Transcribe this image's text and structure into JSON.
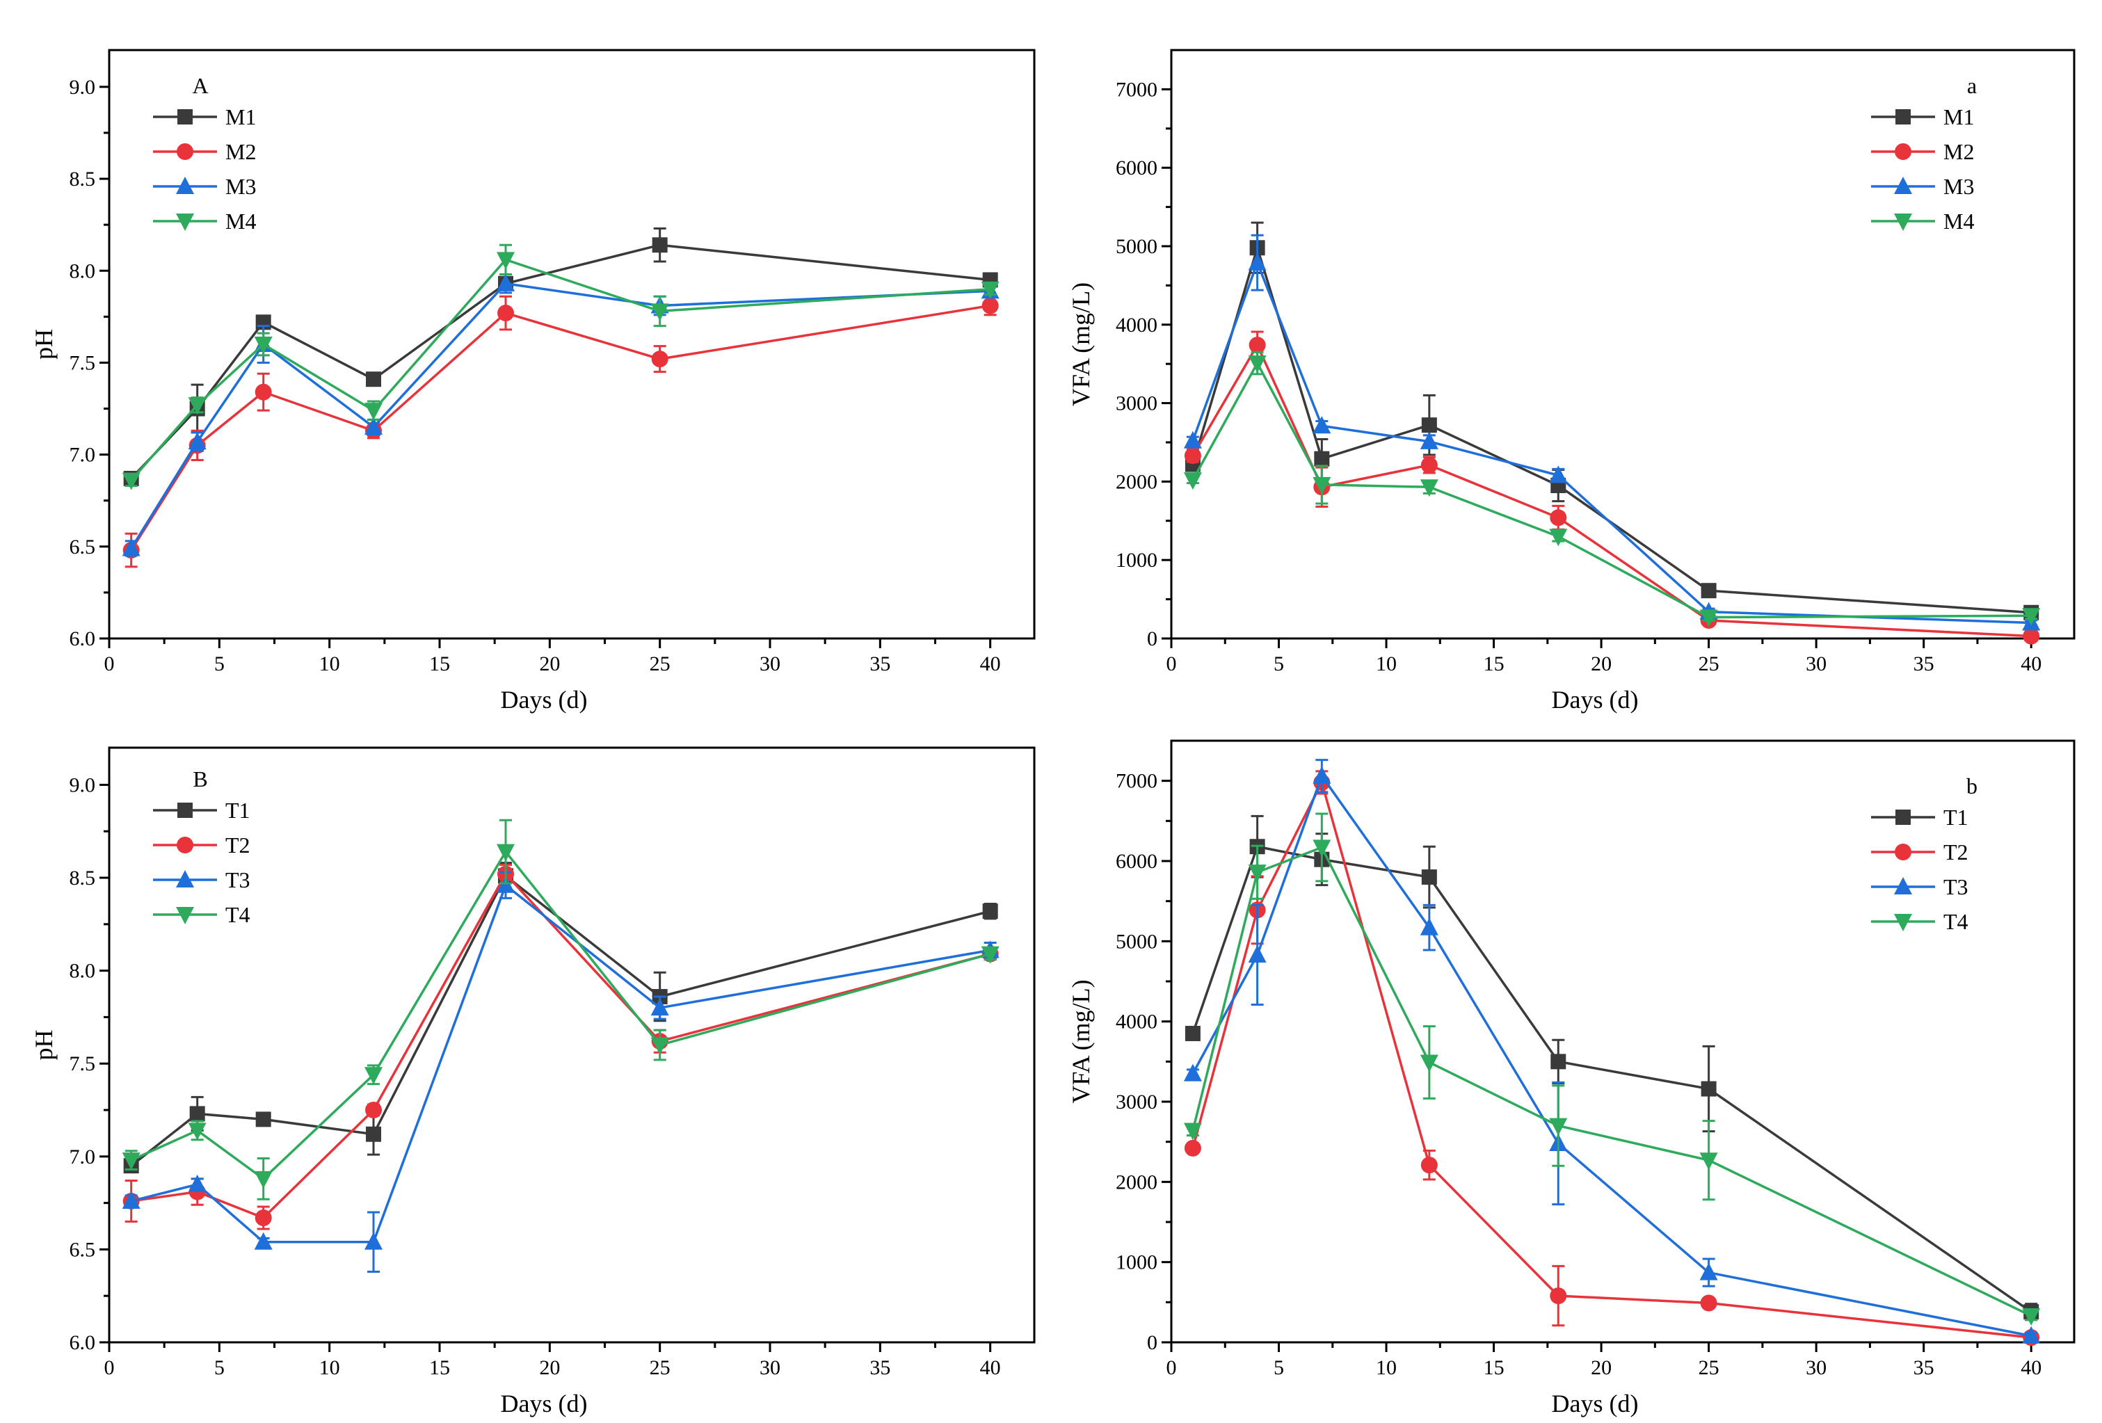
{
  "chart_data": [
    {
      "type": "line",
      "panel": "A",
      "title": "",
      "xlabel": "Days (d)",
      "ylabel": "pH",
      "xlim": [
        0,
        42
      ],
      "ylim": [
        6.0,
        9.2
      ],
      "xticks": [
        0,
        5,
        10,
        15,
        20,
        25,
        30,
        35,
        40
      ],
      "yticks": [
        6.0,
        6.5,
        7.0,
        7.5,
        8.0,
        8.5,
        9.0
      ],
      "tick_decimals": 1,
      "legend_position": "top-left",
      "x": [
        1,
        4,
        7,
        12,
        18,
        25,
        40
      ],
      "series": [
        {
          "name": "M1",
          "color": "#3a3a3a",
          "marker": "square",
          "values": [
            6.87,
            7.25,
            7.72,
            7.41,
            7.93,
            8.14,
            7.95
          ],
          "errors": [
            0.03,
            0.13,
            0.02,
            0.02,
            0.05,
            0.09,
            0.03
          ]
        },
        {
          "name": "M2",
          "color": "#e8333a",
          "marker": "circle",
          "values": [
            6.48,
            7.05,
            7.34,
            7.13,
            7.77,
            7.52,
            7.81
          ],
          "errors": [
            0.09,
            0.08,
            0.1,
            0.04,
            0.09,
            0.07,
            0.05
          ]
        },
        {
          "name": "M3",
          "color": "#1f6fdb",
          "marker": "triangle-up",
          "values": [
            6.49,
            7.07,
            7.6,
            7.15,
            7.93,
            7.81,
            7.89
          ],
          "errors": [
            0.04,
            0.05,
            0.1,
            0.04,
            0.05,
            0.05,
            0.03
          ]
        },
        {
          "name": "M4",
          "color": "#2eaa5c",
          "marker": "triangle-down",
          "values": [
            6.86,
            7.27,
            7.6,
            7.24,
            8.06,
            7.78,
            7.9
          ],
          "errors": [
            0.03,
            0.04,
            0.06,
            0.05,
            0.08,
            0.08,
            0.03
          ]
        }
      ]
    },
    {
      "type": "line",
      "panel": "a",
      "title": "",
      "xlabel": "Days (d)",
      "ylabel": "VFA (mg/L)",
      "xlim": [
        0,
        42
      ],
      "ylim": [
        0,
        7500
      ],
      "xticks": [
        0,
        5,
        10,
        15,
        20,
        25,
        30,
        35,
        40
      ],
      "yticks": [
        0,
        1000,
        2000,
        3000,
        4000,
        5000,
        6000,
        7000
      ],
      "tick_decimals": 0,
      "legend_position": "top-right",
      "x": [
        1,
        4,
        7,
        12,
        18,
        25,
        40
      ],
      "series": [
        {
          "name": "M1",
          "color": "#3a3a3a",
          "marker": "square",
          "values": [
            2220,
            4980,
            2290,
            2720,
            1950,
            610,
            330
          ],
          "errors": [
            60,
            320,
            250,
            380,
            200,
            50,
            40
          ]
        },
        {
          "name": "M2",
          "color": "#e8333a",
          "marker": "circle",
          "values": [
            2330,
            3740,
            1930,
            2210,
            1540,
            230,
            30
          ],
          "errors": [
            80,
            170,
            250,
            100,
            150,
            40,
            20
          ]
        },
        {
          "name": "M3",
          "color": "#1f6fdb",
          "marker": "triangle-up",
          "values": [
            2520,
            4790,
            2710,
            2510,
            2080,
            340,
            200
          ],
          "errors": [
            50,
            350,
            60,
            80,
            80,
            40,
            30
          ]
        },
        {
          "name": "M4",
          "color": "#2eaa5c",
          "marker": "triangle-down",
          "values": [
            2020,
            3510,
            1960,
            1930,
            1300,
            270,
            290
          ],
          "errors": [
            40,
            140,
            240,
            80,
            60,
            40,
            40
          ]
        }
      ]
    },
    {
      "type": "line",
      "panel": "B",
      "title": "",
      "xlabel": "Days (d)",
      "ylabel": "pH",
      "xlim": [
        0,
        42
      ],
      "ylim": [
        6.0,
        9.2
      ],
      "xticks": [
        0,
        5,
        10,
        15,
        20,
        25,
        30,
        35,
        40
      ],
      "yticks": [
        6.0,
        6.5,
        7.0,
        7.5,
        8.0,
        8.5,
        9.0
      ],
      "tick_decimals": 1,
      "legend_position": "top-left",
      "x": [
        1,
        4,
        7,
        12,
        18,
        25,
        40
      ],
      "series": [
        {
          "name": "T1",
          "color": "#3a3a3a",
          "marker": "square",
          "values": [
            6.95,
            7.23,
            7.2,
            7.12,
            8.51,
            7.86,
            8.32
          ],
          "errors": [
            0.03,
            0.09,
            0.03,
            0.11,
            0.07,
            0.13,
            0.04
          ]
        },
        {
          "name": "T2",
          "color": "#e8333a",
          "marker": "circle",
          "values": [
            6.76,
            6.81,
            6.67,
            7.25,
            8.52,
            7.62,
            8.09
          ],
          "errors": [
            0.11,
            0.07,
            0.06,
            0.03,
            0.05,
            0.06,
            0.03
          ]
        },
        {
          "name": "T3",
          "color": "#1f6fdb",
          "marker": "triangle-up",
          "values": [
            6.76,
            6.85,
            6.54,
            6.54,
            8.46,
            7.8,
            8.11
          ],
          "errors": [
            0.03,
            0.03,
            0.02,
            0.16,
            0.07,
            0.06,
            0.04
          ]
        },
        {
          "name": "T4",
          "color": "#2eaa5c",
          "marker": "triangle-down",
          "values": [
            6.98,
            7.14,
            6.88,
            7.44,
            8.64,
            7.6,
            8.09
          ],
          "errors": [
            0.05,
            0.05,
            0.11,
            0.05,
            0.17,
            0.08,
            0.03
          ]
        }
      ]
    },
    {
      "type": "line",
      "panel": "b",
      "title": "",
      "xlabel": "Days (d)",
      "ylabel": "VFA (mg/L)",
      "xlim": [
        0,
        42
      ],
      "ylim": [
        0,
        7500
      ],
      "xticks": [
        0,
        5,
        10,
        15,
        20,
        25,
        30,
        35,
        40
      ],
      "yticks": [
        0,
        1000,
        2000,
        3000,
        4000,
        5000,
        6000,
        7000
      ],
      "tick_decimals": 0,
      "legend_position": "top-right",
      "x": [
        1,
        4,
        7,
        12,
        18,
        25,
        40
      ],
      "series": [
        {
          "name": "T1",
          "color": "#3a3a3a",
          "marker": "square",
          "values": [
            3850,
            6180,
            6020,
            5800,
            3500,
            3160,
            380
          ],
          "errors": [
            50,
            380,
            320,
            380,
            270,
            530,
            100
          ]
        },
        {
          "name": "T2",
          "color": "#e8333a",
          "marker": "circle",
          "values": [
            2420,
            5390,
            6980,
            2210,
            580,
            490,
            60
          ],
          "errors": [
            50,
            420,
            140,
            180,
            370,
            40,
            40
          ]
        },
        {
          "name": "T3",
          "color": "#1f6fdb",
          "marker": "triangle-up",
          "values": [
            3350,
            4830,
            7060,
            5170,
            2480,
            870,
            80
          ],
          "errors": [
            50,
            620,
            200,
            280,
            760,
            170,
            40
          ]
        },
        {
          "name": "T4",
          "color": "#2eaa5c",
          "marker": "triangle-down",
          "values": [
            2640,
            5860,
            6170,
            3490,
            2700,
            2270,
            330
          ],
          "errors": [
            60,
            330,
            420,
            450,
            500,
            490,
            50
          ]
        }
      ]
    }
  ]
}
